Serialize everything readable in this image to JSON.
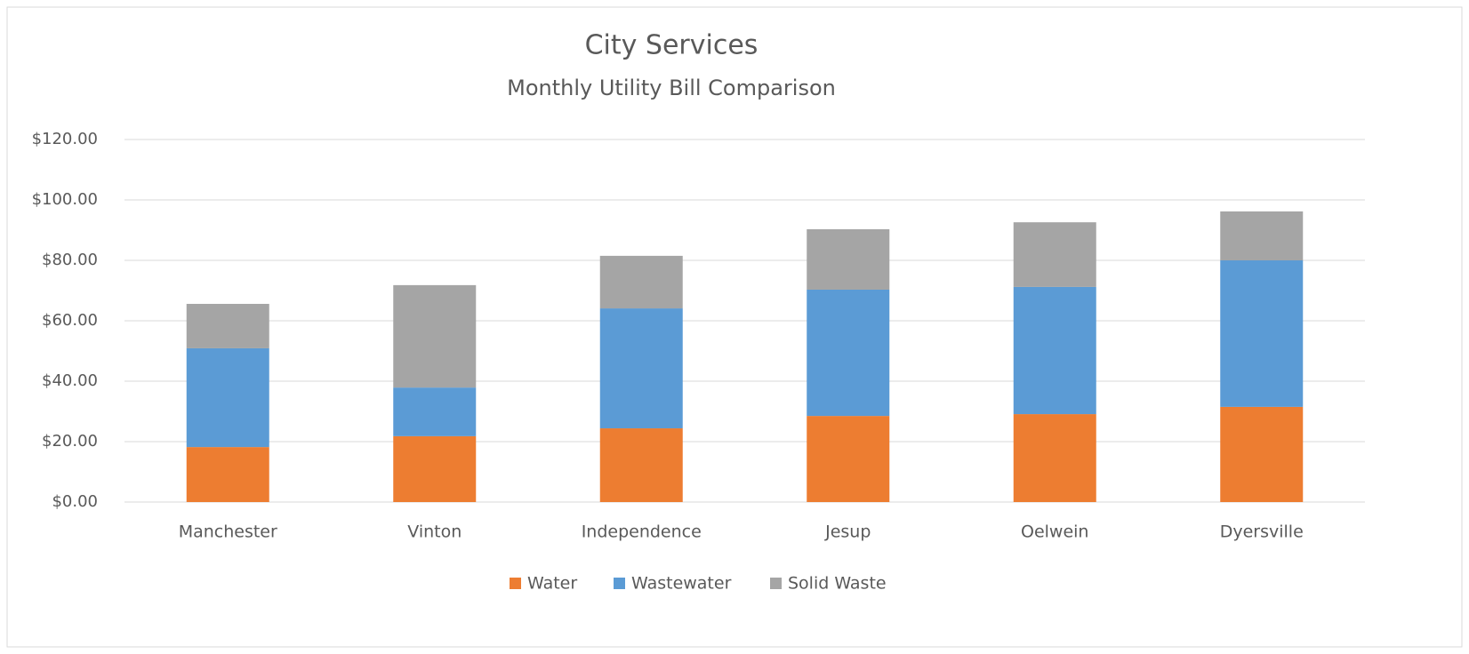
{
  "chart_data": {
    "type": "stacked_bar",
    "title": "City Services",
    "subtitle": "Monthly Utility Bill Comparison",
    "categories": [
      "Manchester",
      "Vinton",
      "Independence",
      "Jesup",
      "Oelwein",
      "Dyersville"
    ],
    "series": [
      {
        "name": "Water",
        "color": "#ed7d31",
        "values": [
          18.2,
          21.8,
          24.4,
          28.5,
          29.1,
          31.5
        ]
      },
      {
        "name": "Wastewater",
        "color": "#5b9bd5",
        "values": [
          32.7,
          16.1,
          39.7,
          41.8,
          42.1,
          48.5
        ]
      },
      {
        "name": "Solid Waste",
        "color": "#a5a5a5",
        "values": [
          14.7,
          33.9,
          17.4,
          20.0,
          21.4,
          16.2
        ]
      }
    ],
    "ylim": [
      0,
      120
    ],
    "yticks": [
      {
        "value": 0,
        "label": "$0.00"
      },
      {
        "value": 20,
        "label": "$20.00"
      },
      {
        "value": 40,
        "label": "$40.00"
      },
      {
        "value": 60,
        "label": "$60.00"
      },
      {
        "value": 80,
        "label": "$80.00"
      },
      {
        "value": 100,
        "label": "$100.00"
      },
      {
        "value": 120,
        "label": "$120.00"
      }
    ],
    "grid": true,
    "legend": "bottom"
  }
}
